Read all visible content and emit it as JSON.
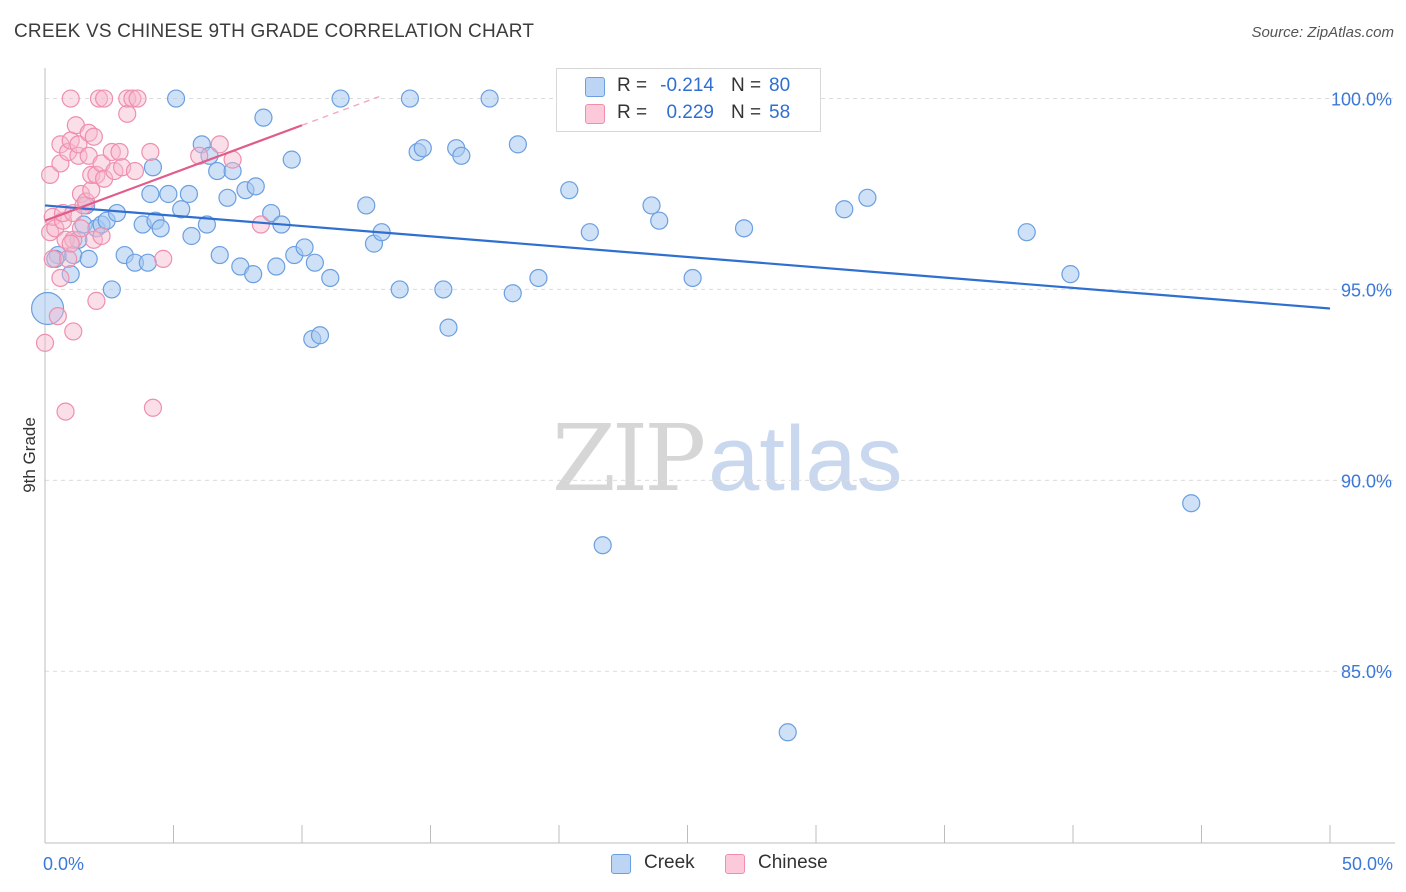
{
  "header": {
    "title": "CREEK VS CHINESE 9TH GRADE CORRELATION CHART",
    "source": "Source: ZipAtlas.com"
  },
  "legend": {
    "creek": {
      "r_label": "R =",
      "r_value": "-0.214",
      "n_label": "N =",
      "n_value": "80"
    },
    "chinese": {
      "r_label": "R =",
      "r_value": "0.229",
      "n_label": "N =",
      "n_value": "58"
    }
  },
  "watermark": {
    "zip": "ZIP",
    "atlas": "atlas"
  },
  "colors": {
    "creek_fill": "#a8c8f0",
    "creek_stroke": "#6b9fe0",
    "creek_line": "#2f6fd0",
    "chinese_fill": "#f7b8cb",
    "chinese_stroke": "#ee8fae",
    "chinese_line": "#e05c8a",
    "tick_label": "#3b78d8",
    "grid": "#dcdcdc"
  },
  "chart_data": {
    "type": "scatter",
    "title": "CREEK VS CHINESE 9TH GRADE CORRELATION CHART",
    "xlabel": "",
    "ylabel": "9th Grade",
    "xlim": [
      0,
      50
    ],
    "ylim": [
      80.5,
      100.8
    ],
    "x_tick_labels": [
      "0.0%",
      "50.0%"
    ],
    "y_ticks": [
      {
        "value": 100,
        "label": "100.0%"
      },
      {
        "value": 95,
        "label": "95.0%"
      },
      {
        "value": 90,
        "label": "90.0%"
      },
      {
        "value": 85,
        "label": "85.0%"
      }
    ],
    "grid": "horizontal dashed",
    "legend_position": "top-center",
    "series": [
      {
        "name": "Creek",
        "r": -0.214,
        "n": 80,
        "trend": {
          "x": [
            0,
            50
          ],
          "y": [
            97.2,
            94.5
          ]
        },
        "points": [
          [
            0.1,
            94.5
          ],
          [
            0.5,
            95.9
          ],
          [
            1.0,
            95.4
          ],
          [
            1.1,
            95.9
          ],
          [
            1.3,
            96.3
          ],
          [
            1.5,
            96.7
          ],
          [
            1.6,
            97.2
          ],
          [
            1.7,
            95.8
          ],
          [
            2.0,
            96.6
          ],
          [
            2.2,
            96.7
          ],
          [
            2.4,
            96.8
          ],
          [
            2.6,
            95.0
          ],
          [
            2.8,
            97.0
          ],
          [
            3.1,
            95.9
          ],
          [
            3.5,
            95.7
          ],
          [
            3.8,
            96.7
          ],
          [
            4.0,
            95.7
          ],
          [
            4.2,
            98.2
          ],
          [
            4.1,
            97.5
          ],
          [
            4.3,
            96.8
          ],
          [
            4.5,
            96.6
          ],
          [
            4.8,
            97.5
          ],
          [
            5.1,
            100.0
          ],
          [
            5.3,
            97.1
          ],
          [
            5.6,
            97.5
          ],
          [
            5.7,
            96.4
          ],
          [
            6.1,
            98.8
          ],
          [
            6.3,
            96.7
          ],
          [
            6.4,
            98.5
          ],
          [
            6.7,
            98.1
          ],
          [
            6.8,
            95.9
          ],
          [
            7.1,
            97.4
          ],
          [
            7.3,
            98.1
          ],
          [
            7.6,
            95.6
          ],
          [
            7.8,
            97.6
          ],
          [
            8.1,
            95.4
          ],
          [
            8.2,
            97.7
          ],
          [
            8.5,
            99.5
          ],
          [
            8.8,
            97.0
          ],
          [
            9.0,
            95.6
          ],
          [
            9.2,
            96.7
          ],
          [
            9.6,
            98.4
          ],
          [
            9.7,
            95.9
          ],
          [
            10.1,
            96.1
          ],
          [
            10.4,
            93.7
          ],
          [
            10.5,
            95.7
          ],
          [
            10.7,
            93.8
          ],
          [
            11.1,
            95.3
          ],
          [
            11.5,
            100.0
          ],
          [
            12.5,
            97.2
          ],
          [
            12.8,
            96.2
          ],
          [
            13.1,
            96.5
          ],
          [
            13.8,
            95.0
          ],
          [
            14.2,
            100.0
          ],
          [
            14.5,
            98.6
          ],
          [
            14.7,
            98.7
          ],
          [
            15.5,
            95.0
          ],
          [
            15.7,
            94.0
          ],
          [
            16.0,
            98.7
          ],
          [
            16.2,
            98.5
          ],
          [
            17.3,
            100.0
          ],
          [
            18.2,
            94.9
          ],
          [
            18.4,
            98.8
          ],
          [
            19.2,
            95.3
          ],
          [
            20.4,
            97.6
          ],
          [
            21.2,
            96.5
          ],
          [
            21.7,
            88.3
          ],
          [
            22.5,
            100.0
          ],
          [
            23.2,
            100.0
          ],
          [
            23.6,
            97.2
          ],
          [
            23.9,
            96.8
          ],
          [
            25.2,
            95.3
          ],
          [
            27.2,
            96.6
          ],
          [
            28.9,
            83.4
          ],
          [
            31.1,
            97.1
          ],
          [
            32.0,
            97.4
          ],
          [
            38.2,
            96.5
          ],
          [
            39.9,
            95.4
          ],
          [
            44.6,
            89.4
          ],
          [
            0.4,
            95.8
          ]
        ]
      },
      {
        "name": "Chinese",
        "r": 0.229,
        "n": 58,
        "trend": {
          "x": [
            0,
            10
          ],
          "y": [
            96.8,
            99.3
          ]
        },
        "points": [
          [
            0.0,
            93.6
          ],
          [
            0.2,
            96.5
          ],
          [
            0.2,
            98.0
          ],
          [
            0.3,
            96.9
          ],
          [
            0.3,
            95.8
          ],
          [
            0.4,
            96.6
          ],
          [
            0.5,
            94.3
          ],
          [
            0.6,
            95.3
          ],
          [
            0.6,
            98.3
          ],
          [
            0.6,
            98.8
          ],
          [
            0.7,
            96.8
          ],
          [
            0.7,
            97.0
          ],
          [
            0.8,
            91.8
          ],
          [
            0.8,
            96.3
          ],
          [
            0.9,
            95.8
          ],
          [
            0.9,
            98.6
          ],
          [
            1.0,
            100.0
          ],
          [
            1.0,
            98.9
          ],
          [
            1.1,
            96.3
          ],
          [
            1.1,
            93.9
          ],
          [
            1.1,
            97.0
          ],
          [
            1.2,
            99.3
          ],
          [
            1.3,
            98.5
          ],
          [
            1.3,
            98.8
          ],
          [
            1.4,
            97.5
          ],
          [
            1.4,
            96.6
          ],
          [
            1.5,
            97.2
          ],
          [
            1.6,
            97.3
          ],
          [
            1.7,
            98.5
          ],
          [
            1.7,
            99.1
          ],
          [
            1.8,
            97.6
          ],
          [
            1.8,
            98.0
          ],
          [
            1.9,
            99.0
          ],
          [
            1.9,
            96.3
          ],
          [
            2.0,
            98.0
          ],
          [
            2.0,
            94.7
          ],
          [
            2.1,
            100.0
          ],
          [
            2.2,
            98.3
          ],
          [
            2.3,
            100.0
          ],
          [
            2.3,
            97.9
          ],
          [
            2.6,
            98.6
          ],
          [
            2.7,
            98.1
          ],
          [
            2.9,
            98.6
          ],
          [
            3.0,
            98.2
          ],
          [
            3.2,
            99.6
          ],
          [
            3.2,
            100.0
          ],
          [
            3.4,
            100.0
          ],
          [
            3.5,
            98.1
          ],
          [
            3.6,
            100.0
          ],
          [
            4.1,
            98.6
          ],
          [
            4.2,
            91.9
          ],
          [
            4.6,
            95.8
          ],
          [
            6.0,
            98.5
          ],
          [
            6.8,
            98.8
          ],
          [
            7.3,
            98.4
          ],
          [
            8.4,
            96.7
          ],
          [
            2.2,
            96.4
          ],
          [
            1.0,
            96.2
          ]
        ]
      }
    ]
  }
}
